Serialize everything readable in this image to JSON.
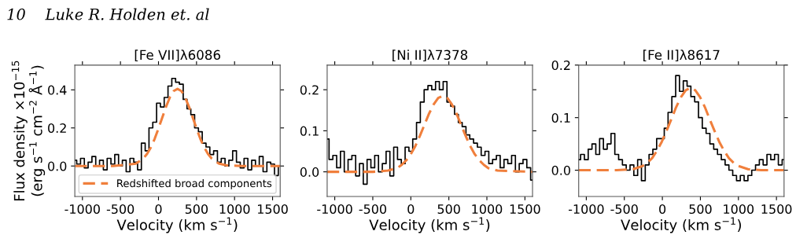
{
  "chart_data": [
    {
      "type": "step",
      "title": "[Fe VII]λ6086",
      "xlabel": "Velocity (km s$^{−1}$)",
      "ylabel": "Flux density ×10$^{−15}$\n(erg s$^{−1}$ cm$^{−2}$ Å$^{−1}$)",
      "annotations": [
        "10    Luke R. Holden et. al"
      ],
      "xlim": [
        -1100,
        1600
      ],
      "ylim": [
        -0.16,
        0.53
      ],
      "xticks": [
        -1000,
        -500,
        0,
        500,
        1000,
        1500
      ],
      "yticks": [
        {
          "value": 0,
          "label": "0.0"
        },
        {
          "value": 0.2,
          "label": "0.2"
        },
        {
          "value": 0.4,
          "label": "0.4"
        }
      ],
      "legend": "bottom",
      "series": [
        {
          "color": "#000000",
          "x": [
            -1100,
            -1050,
            -1000,
            -950,
            -900,
            -850,
            -800,
            -750,
            -700,
            -650,
            -600,
            -550,
            -500,
            -450,
            -400,
            -350,
            -300,
            -250,
            -200,
            -150,
            -100,
            -50,
            0,
            50,
            100,
            150,
            200,
            250,
            300,
            350,
            400,
            450,
            500,
            550,
            600,
            650,
            700,
            750,
            800,
            850,
            900,
            950,
            1000,
            1050,
            1100,
            1150,
            1200,
            1250,
            1300,
            1350,
            1400,
            1450,
            1500,
            1550,
            1600
          ],
          "values": [
            0.03,
            0.01,
            0.04,
            -0.01,
            0.02,
            0.05,
            0.0,
            0.03,
            -0.02,
            0.04,
            0.01,
            0.06,
            0.0,
            0.03,
            -0.03,
            0.04,
            0.02,
            -0.02,
            0.12,
            0.08,
            0.2,
            0.23,
            0.33,
            0.31,
            0.36,
            0.42,
            0.46,
            0.44,
            0.43,
            0.35,
            0.3,
            0.27,
            0.2,
            0.18,
            0.12,
            0.1,
            0.06,
            0.08,
            0.02,
            0.04,
            0.0,
            0.03,
            0.08,
            0.02,
            -0.01,
            0.04,
            -0.02,
            0.03,
            0.0,
            0.05,
            -0.03,
            0.02,
            0.01,
            -0.05,
            0.0
          ]
        },
        {
          "type": "line",
          "name": "Redshifted broad components",
          "color": "#f07f3c",
          "line_style": "dashed",
          "x": [
            -1100,
            -600,
            -300,
            -200,
            -150,
            -100,
            -50,
            0,
            50,
            100,
            150,
            200,
            250,
            300,
            350,
            400,
            450,
            500,
            550,
            600,
            650,
            700,
            750,
            800,
            900,
            1100,
            1600
          ],
          "values": [
            0,
            0,
            0.012,
            0.039,
            0.064,
            0.098,
            0.143,
            0.197,
            0.255,
            0.312,
            0.361,
            0.394,
            0.405,
            0.394,
            0.361,
            0.312,
            0.255,
            0.197,
            0.143,
            0.098,
            0.064,
            0.039,
            0.023,
            0.012,
            0.003,
            0,
            0
          ]
        }
      ]
    },
    {
      "type": "step",
      "title": "[Ni II]λ7378",
      "xlabel": "Velocity (km s$^{−1}$)",
      "xlim": [
        -1100,
        1600
      ],
      "ylim": [
        -0.06,
        0.26
      ],
      "xticks": [
        -1000,
        -500,
        0,
        500,
        1000,
        1500
      ],
      "yticks": [
        {
          "value": 0,
          "label": "0.0"
        },
        {
          "value": 0.1,
          "label": "0.1"
        },
        {
          "value": 0.2,
          "label": "0.2"
        }
      ],
      "series": [
        {
          "color": "#000000",
          "x": [
            -1100,
            -1050,
            -1000,
            -950,
            -900,
            -850,
            -800,
            -750,
            -700,
            -650,
            -600,
            -550,
            -500,
            -450,
            -400,
            -350,
            -300,
            -250,
            -200,
            -150,
            -100,
            -50,
            0,
            50,
            100,
            150,
            200,
            250,
            300,
            350,
            400,
            450,
            500,
            550,
            600,
            650,
            700,
            750,
            800,
            850,
            900,
            950,
            1000,
            1050,
            1100,
            1150,
            1200,
            1250,
            1300,
            1350,
            1400,
            1450,
            1500,
            1550,
            1600
          ],
          "values": [
            0.08,
            0.03,
            0.04,
            0.01,
            0.05,
            0.0,
            0.03,
            0.04,
            -0.01,
            0.02,
            -0.03,
            0.03,
            0.01,
            0.04,
            0.0,
            0.02,
            0.05,
            -0.01,
            0.06,
            0.03,
            0.02,
            0.06,
            0.05,
            0.08,
            0.12,
            0.17,
            0.2,
            0.21,
            0.2,
            0.22,
            0.2,
            0.22,
            0.17,
            0.16,
            0.14,
            0.12,
            0.11,
            0.09,
            0.08,
            0.07,
            0.06,
            0.04,
            0.05,
            0.02,
            0.03,
            0.04,
            0.01,
            0.03,
            0.02,
            0.04,
            0.0,
            0.02,
            0.03,
            0.01,
            -0.02
          ]
        },
        {
          "type": "line",
          "color": "#f07f3c",
          "line_style": "dashed",
          "x": [
            -1100,
            -500,
            -300,
            -180,
            -120,
            -60,
            0,
            60,
            120,
            180,
            240,
            300,
            360,
            420,
            480,
            540,
            600,
            660,
            720,
            780,
            840,
            900,
            960,
            1020,
            1140,
            1600
          ],
          "values": [
            0,
            0,
            0.003,
            0.009,
            0.017,
            0.028,
            0.043,
            0.063,
            0.088,
            0.115,
            0.142,
            0.164,
            0.18,
            0.185,
            0.18,
            0.164,
            0.142,
            0.115,
            0.088,
            0.063,
            0.043,
            0.028,
            0.017,
            0.009,
            0.003,
            0
          ]
        }
      ]
    },
    {
      "type": "step",
      "title": "[Fe II]λ8617",
      "xlabel": "Velocity (km s$^{−1}$)",
      "xlim": [
        -1100,
        1600
      ],
      "ylim": [
        -0.05,
        0.2
      ],
      "xticks": [
        -1000,
        -500,
        0,
        500,
        1000,
        1500
      ],
      "yticks": [
        {
          "value": 0,
          "label": "0.0"
        },
        {
          "value": 0.1,
          "label": "0.1"
        },
        {
          "value": 0.2,
          "label": "0.2"
        }
      ],
      "series": [
        {
          "color": "#000000",
          "x": [
            -1100,
            -1050,
            -1000,
            -950,
            -900,
            -850,
            -800,
            -750,
            -700,
            -650,
            -600,
            -550,
            -500,
            -450,
            -400,
            -350,
            -300,
            -250,
            -200,
            -150,
            -100,
            -50,
            0,
            50,
            100,
            150,
            200,
            250,
            300,
            350,
            400,
            450,
            500,
            550,
            600,
            650,
            700,
            750,
            800,
            850,
            900,
            950,
            1000,
            1050,
            1100,
            1150,
            1200,
            1250,
            1300,
            1350,
            1400,
            1450,
            1500,
            1550,
            1600
          ],
          "values": [
            0.02,
            0.03,
            0.02,
            0.04,
            0.05,
            0.03,
            0.06,
            0.04,
            0.05,
            0.07,
            0.03,
            0.02,
            0.01,
            0.0,
            0.01,
            -0.01,
            0.02,
            -0.02,
            0.01,
            0.03,
            0.04,
            0.06,
            0.06,
            0.08,
            0.11,
            0.14,
            0.18,
            0.15,
            0.17,
            0.16,
            0.14,
            0.13,
            0.1,
            0.08,
            0.07,
            0.05,
            0.04,
            0.03,
            0.02,
            0.01,
            0.0,
            -0.01,
            -0.02,
            -0.01,
            -0.02,
            -0.01,
            0.0,
            0.01,
            0.02,
            0.01,
            0.03,
            0.02,
            0.03,
            0.01,
            0.02
          ]
        },
        {
          "type": "line",
          "color": "#f07f3c",
          "line_style": "dashed",
          "x": [
            -1100,
            -600,
            -386,
            -260,
            -197,
            -134,
            -71,
            -8,
            55,
            118,
            181,
            244,
            307,
            370,
            433,
            496,
            559,
            622,
            685,
            748,
            811,
            874,
            937,
            1000,
            1126,
            1300,
            1600
          ],
          "values": [
            0,
            0,
            0.002,
            0.008,
            0.014,
            0.023,
            0.037,
            0.054,
            0.075,
            0.097,
            0.12,
            0.139,
            0.152,
            0.157,
            0.152,
            0.139,
            0.12,
            0.097,
            0.075,
            0.054,
            0.037,
            0.023,
            0.014,
            0.008,
            0.002,
            0,
            0
          ]
        }
      ]
    }
  ]
}
